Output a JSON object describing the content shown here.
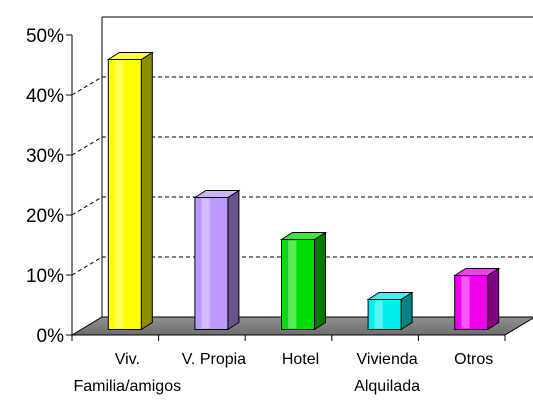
{
  "chart_data": {
    "type": "bar",
    "categories": [
      [
        "Viv.",
        "Familia/amigos"
      ],
      [
        "V. Propia"
      ],
      [
        "Hotel"
      ],
      [
        "Vivienda",
        "Alquilada"
      ],
      [
        "Otros"
      ]
    ],
    "values": [
      45,
      22,
      15,
      5,
      9
    ],
    "ylim": [
      0,
      50
    ],
    "y_ticks": [
      "0%",
      "10%",
      "20%",
      "30%",
      "40%",
      "50%"
    ],
    "y_tick_values": [
      0,
      10,
      20,
      30,
      40,
      50
    ],
    "grid": true,
    "style": "3d-cylinder-bars",
    "colors": [
      "#ffff00",
      "#bb99ff",
      "#00dd00",
      "#00eeee",
      "#ee00ee"
    ]
  }
}
